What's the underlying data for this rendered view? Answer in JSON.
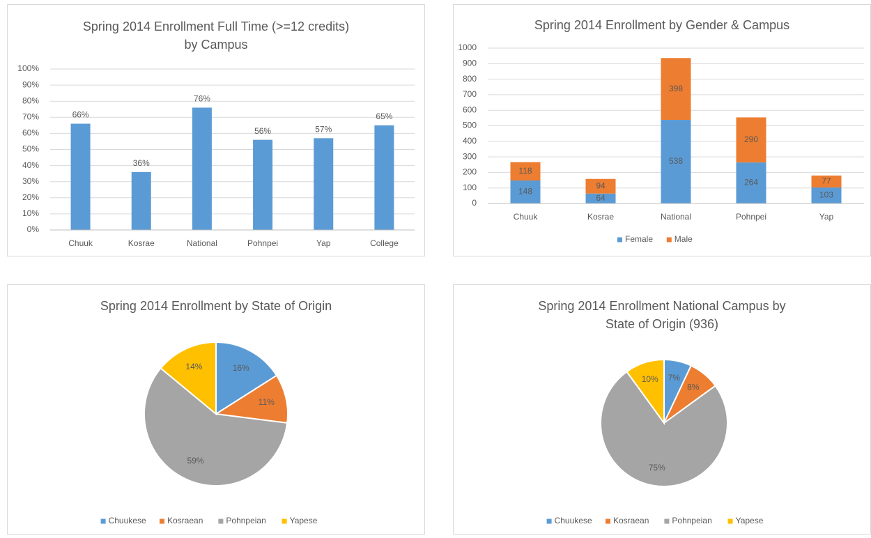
{
  "chart_data": [
    {
      "type": "bar",
      "title": [
        "Spring 2014 Enrollment Full Time (>=12 credits)",
        "by Campus"
      ],
      "categories": [
        "Chuuk",
        "Kosrae",
        "National",
        "Pohnpei",
        "Yap",
        "College"
      ],
      "values": [
        66,
        36,
        76,
        56,
        57,
        65
      ],
      "value_labels": [
        "66%",
        "36%",
        "76%",
        "56%",
        "57%",
        "65%"
      ],
      "color": "#5b9bd5",
      "ylim": [
        0,
        100
      ],
      "yticks": [
        {
          "value": 0,
          "label": "0%"
        },
        {
          "value": 10,
          "label": "10%"
        },
        {
          "value": 20,
          "label": "20%"
        },
        {
          "value": 30,
          "label": "30%"
        },
        {
          "value": 40,
          "label": "40%"
        },
        {
          "value": 50,
          "label": "50%"
        },
        {
          "value": 60,
          "label": "60%"
        },
        {
          "value": 70,
          "label": "70%"
        },
        {
          "value": 80,
          "label": "80%"
        },
        {
          "value": 90,
          "label": "90%"
        },
        {
          "value": 100,
          "label": "100%"
        }
      ],
      "grid": true
    },
    {
      "type": "stacked_bar",
      "title": [
        "Spring 2014 Enrollment by Gender & Campus"
      ],
      "categories": [
        "Chuuk",
        "Kosrae",
        "National",
        "Pohnpei",
        "Yap"
      ],
      "series": [
        {
          "name": "Female",
          "color": "#5b9bd5",
          "values": [
            148,
            64,
            538,
            264,
            103
          ]
        },
        {
          "name": "Male",
          "color": "#ed7d31",
          "values": [
            118,
            94,
            398,
            290,
            77
          ]
        }
      ],
      "ylim": [
        0,
        1000
      ],
      "yticks": [
        0,
        100,
        200,
        300,
        400,
        500,
        600,
        700,
        800,
        900,
        1000
      ],
      "grid": true,
      "legend": "bottom"
    },
    {
      "type": "pie",
      "title": [
        "Spring 2014 Enrollment by State of Origin"
      ],
      "categories": [
        "Chuukese",
        "Kosraean",
        "Pohnpeian",
        "Yapese"
      ],
      "values": [
        16,
        11,
        59,
        14
      ],
      "value_labels": [
        "16%",
        "11%",
        "59%",
        "14%"
      ],
      "colors": [
        "#5b9bd5",
        "#ed7d31",
        "#a5a5a5",
        "#ffc000"
      ],
      "legend": "bottom"
    },
    {
      "type": "pie",
      "title": [
        "Spring 2014 Enrollment National Campus by",
        "State of Origin (936)"
      ],
      "categories": [
        "Chuukese",
        "Kosraean",
        "Pohnpeian",
        "Yapese"
      ],
      "values": [
        7,
        8,
        75,
        10
      ],
      "value_labels": [
        "7%",
        "8%",
        "75%",
        "10%"
      ],
      "colors": [
        "#5b9bd5",
        "#ed7d31",
        "#a5a5a5",
        "#ffc000"
      ],
      "legend": "bottom"
    }
  ]
}
